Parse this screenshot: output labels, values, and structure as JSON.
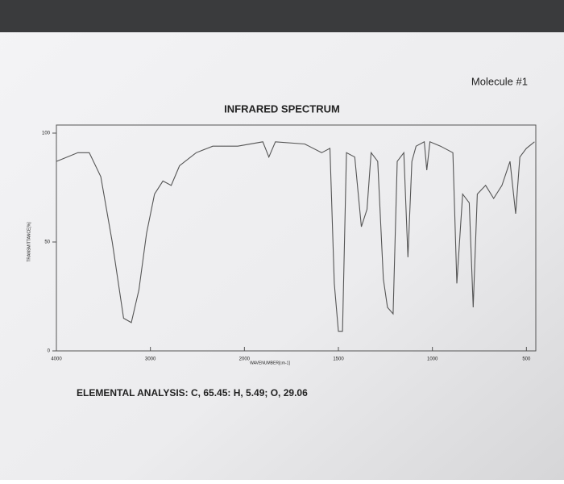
{
  "header": "Molecule #1",
  "chart_data": {
    "type": "line",
    "title": "INFRARED SPECTRUM",
    "x_label": "WAVENUMBER[cm-1]",
    "y_label": "TRANSMITTANCE[%]",
    "x": [
      4000,
      3772,
      3650,
      3528,
      3406,
      3285,
      3203,
      3122,
      3041,
      2956,
      2867,
      2779,
      2690,
      2513,
      2336,
      2071,
      1902,
      1870,
      1835,
      1679,
      1589,
      1545,
      1522,
      1500,
      1478,
      1457,
      1413,
      1378,
      1348,
      1326,
      1291,
      1261,
      1239,
      1209,
      1187,
      1152,
      1130,
      1109,
      1087,
      1043,
      1030,
      1013,
      957,
      891,
      870,
      839,
      804,
      783,
      761,
      717,
      674,
      630,
      587,
      557,
      535,
      500,
      457
    ],
    "series": [
      {
        "name": "spectrum",
        "color": "#555555",
        "values": [
          87,
          91,
          91,
          80,
          50,
          15,
          13,
          28,
          54,
          72,
          78,
          76,
          85,
          91,
          94,
          94,
          96,
          89,
          96,
          95,
          91,
          93,
          31,
          9,
          9,
          91,
          89,
          57,
          65,
          91,
          87,
          33,
          20,
          17,
          87,
          91,
          43,
          87,
          94,
          96,
          83,
          96,
          94,
          91,
          31,
          72,
          68,
          20,
          72,
          76,
          70,
          76,
          87,
          63,
          89,
          93,
          96
        ]
      }
    ],
    "xlim": [
      4000,
      450
    ],
    "xticks": [
      4000,
      3000,
      2000,
      1500,
      1000,
      500
    ],
    "ylim": [
      0,
      100
    ],
    "yticks": [
      0,
      50,
      100
    ]
  },
  "footer": "ELEMENTAL ANALYSIS: C, 65.45: H, 5.49; O, 29.06"
}
